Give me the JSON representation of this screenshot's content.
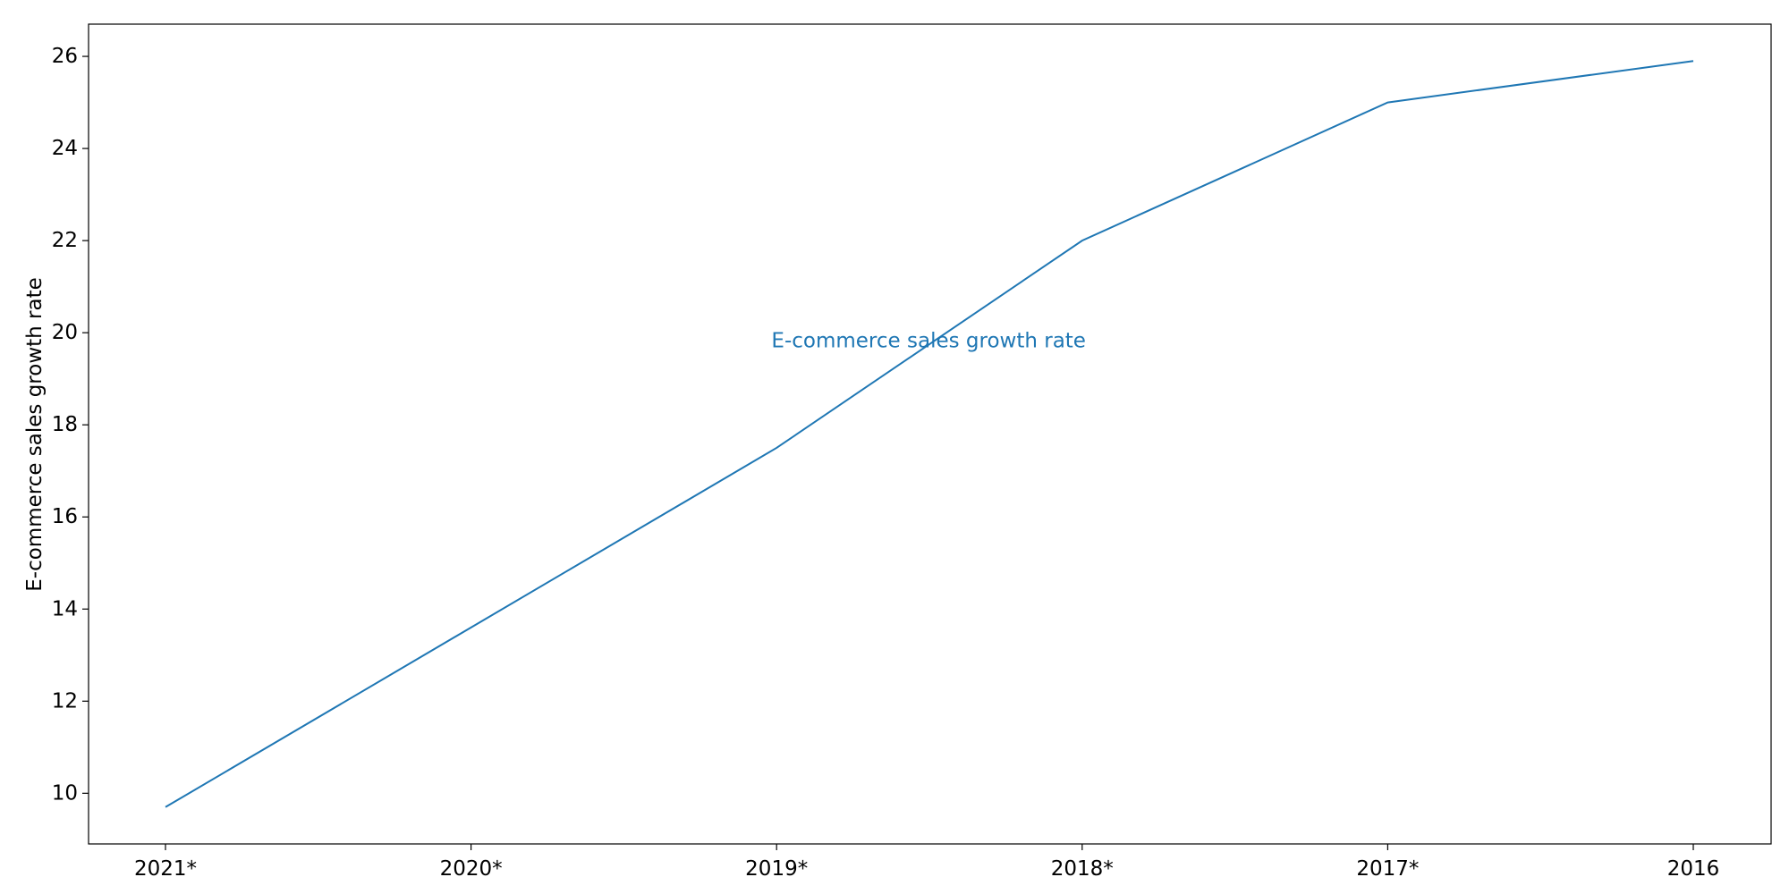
{
  "chart_data": {
    "type": "line",
    "title": "",
    "xlabel": "",
    "ylabel": "E-commerce sales growth rate",
    "categories": [
      "2021*",
      "2020*",
      "2019*",
      "2018*",
      "2017*",
      "2016"
    ],
    "series": [
      {
        "name": "E-commerce sales growth rate",
        "values": [
          9.7,
          13.6,
          17.5,
          22.0,
          25.0,
          25.9
        ],
        "color": "#1f77b4"
      }
    ],
    "ylim": [
      8.9,
      26.7
    ],
    "yticks": [
      10,
      12,
      14,
      16,
      18,
      20,
      22,
      24,
      26
    ],
    "grid": false,
    "legend": "none",
    "annotation": {
      "text": "E-commerce sales growth rate",
      "x_category": "2019*",
      "y": 19.7,
      "color": "#1f77b4"
    }
  }
}
